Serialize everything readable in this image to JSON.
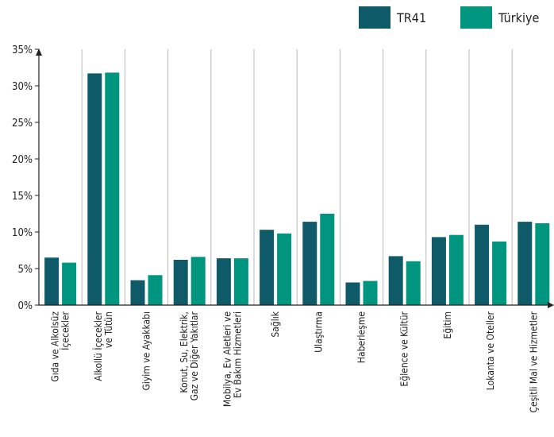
{
  "chart_data": {
    "type": "bar",
    "title": "",
    "xlabel": "",
    "ylabel": "",
    "categories": [
      [
        "Gıda ve Alkolsüz",
        "İçecekler"
      ],
      [
        "Alkollü İçecekler",
        "ve Tütün"
      ],
      [
        "Giyim ve Ayakkabı"
      ],
      [
        "Konut, Su, Elektrik,",
        "Gaz ve Diğer Yakıtlar"
      ],
      [
        "Mobilya, Ev Aletleri ve",
        "Ev Bakım Hizmetleri"
      ],
      [
        "Sağlık"
      ],
      [
        "Ulaştırma"
      ],
      [
        "Haberleşme"
      ],
      [
        "Eğlence ve Kültür"
      ],
      [
        "Eğitim"
      ],
      [
        "Lokanta ve Oteller"
      ],
      [
        "Çeşitli Mal ve Hizmetler"
      ]
    ],
    "series": [
      {
        "name": "TR41",
        "color": "#0e5a68",
        "values": [
          6.5,
          31.7,
          3.4,
          6.2,
          6.4,
          10.3,
          11.4,
          3.1,
          6.7,
          9.3,
          11.0,
          11.4
        ]
      },
      {
        "name": "Türkiye",
        "color": "#00957f",
        "values": [
          5.8,
          31.8,
          4.1,
          6.6,
          6.4,
          9.8,
          12.5,
          3.3,
          6.0,
          9.6,
          8.7,
          11.2
        ]
      }
    ],
    "ylim": [
      0,
      35
    ],
    "yticks": [
      0,
      5,
      10,
      15,
      20,
      25,
      30,
      35
    ],
    "tick_suffix": "%",
    "legend_position": "top-right",
    "grid": {
      "vertical": true,
      "horizontal": false
    }
  }
}
